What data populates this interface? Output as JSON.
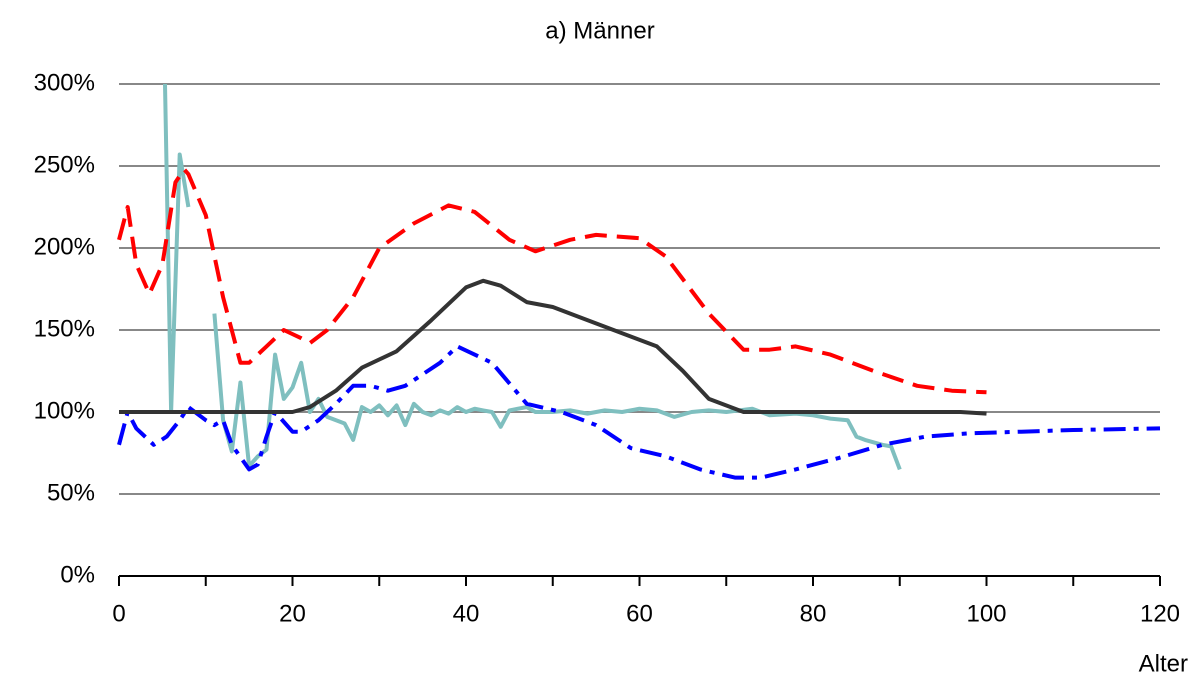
{
  "chart_data": {
    "type": "line",
    "title": "a) Männer",
    "x_label": "Alter",
    "xlim": [
      0,
      120
    ],
    "xticks": [
      0,
      20,
      40,
      60,
      80,
      100,
      120
    ],
    "x_minor_ticks": [
      10,
      30,
      50,
      70,
      90,
      110
    ],
    "ylim": [
      0,
      300
    ],
    "yticks": [
      {
        "value": 0,
        "label": "0%"
      },
      {
        "value": 50,
        "label": "50%"
      },
      {
        "value": 100,
        "label": "100%"
      },
      {
        "value": 150,
        "label": "150%"
      },
      {
        "value": 200,
        "label": "200%"
      },
      {
        "value": 250,
        "label": "250%"
      },
      {
        "value": 300,
        "label": "300%"
      }
    ],
    "grid": true,
    "series": [
      {
        "color": "#7fbfbf",
        "dash": "solid",
        "x": [
          5.3,
          6,
          7,
          8,
          9,
          11,
          12,
          13,
          14,
          15,
          16,
          17,
          18,
          19,
          20,
          21,
          22,
          23,
          24,
          26,
          27,
          28,
          29,
          30,
          31,
          32,
          33,
          34,
          35,
          36,
          37,
          38,
          39,
          40,
          41,
          42,
          43,
          44,
          45,
          46,
          47,
          48,
          50,
          52,
          54,
          56,
          58,
          60,
          62,
          64,
          66,
          68,
          70,
          73,
          75,
          78,
          80,
          82,
          84,
          85,
          86,
          88,
          89,
          90
        ],
        "values": [
          300,
          100,
          257,
          225,
          null,
          160,
          95,
          76,
          118,
          67,
          73,
          77,
          135,
          108,
          115,
          130,
          100,
          108,
          97,
          93,
          83,
          103,
          100,
          104,
          98,
          104,
          92,
          105,
          100,
          98,
          101,
          99,
          103,
          100,
          102,
          101,
          100,
          91,
          101,
          102,
          103,
          100,
          100,
          101,
          99,
          101,
          100,
          102,
          101,
          97,
          100,
          101,
          100,
          102,
          98,
          99,
          98,
          96,
          95,
          85,
          83,
          80,
          79,
          65
        ]
      },
      {
        "color": "#ff0000",
        "dash": "dash",
        "x": [
          0,
          1,
          2,
          3.5,
          5,
          6.5,
          7.5,
          8,
          10,
          12,
          14,
          15,
          17,
          19,
          21,
          22,
          24,
          27,
          30,
          34,
          38,
          41,
          45,
          48,
          52,
          55,
          60,
          63,
          68,
          72,
          75,
          78,
          82,
          87,
          92,
          96,
          100
        ],
        "values": [
          205,
          225,
          190,
          172,
          190,
          240,
          248,
          245,
          220,
          170,
          130,
          130,
          140,
          150,
          145,
          142,
          150,
          170,
          200,
          215,
          226,
          222,
          205,
          198,
          205,
          208,
          206,
          195,
          160,
          138,
          138,
          140,
          135,
          125,
          116,
          113,
          112
        ]
      },
      {
        "color": "#0000ff",
        "dash": "dashdot",
        "x": [
          0,
          1,
          2,
          4,
          5.5,
          7,
          8,
          10,
          11,
          12,
          13,
          15,
          16,
          17,
          18,
          20,
          21,
          23,
          25,
          27,
          29,
          31,
          33,
          37,
          39,
          43,
          47,
          51,
          55,
          59,
          63,
          67,
          71,
          74,
          78,
          83,
          88,
          93,
          98,
          104,
          110,
          120
        ],
        "values": [
          80,
          100,
          90,
          80,
          85,
          95,
          103,
          95,
          92,
          95,
          80,
          65,
          68,
          85,
          100,
          88,
          88,
          95,
          105,
          116,
          116,
          113,
          116,
          130,
          140,
          130,
          105,
          100,
          92,
          78,
          73,
          65,
          60,
          60,
          65,
          72,
          80,
          85,
          87,
          88,
          89,
          90
        ]
      },
      {
        "color": "#333333",
        "dash": "solid",
        "x": [
          0,
          20,
          22,
          25,
          28,
          32,
          36,
          40,
          42,
          44,
          47,
          50,
          53,
          57,
          62,
          65,
          68,
          72,
          80,
          97,
          100
        ],
        "values": [
          100,
          100,
          103,
          113,
          127,
          137,
          156,
          176,
          180,
          177,
          167,
          164,
          158,
          150,
          140,
          125,
          108,
          100,
          100,
          100,
          99
        ]
      }
    ]
  }
}
